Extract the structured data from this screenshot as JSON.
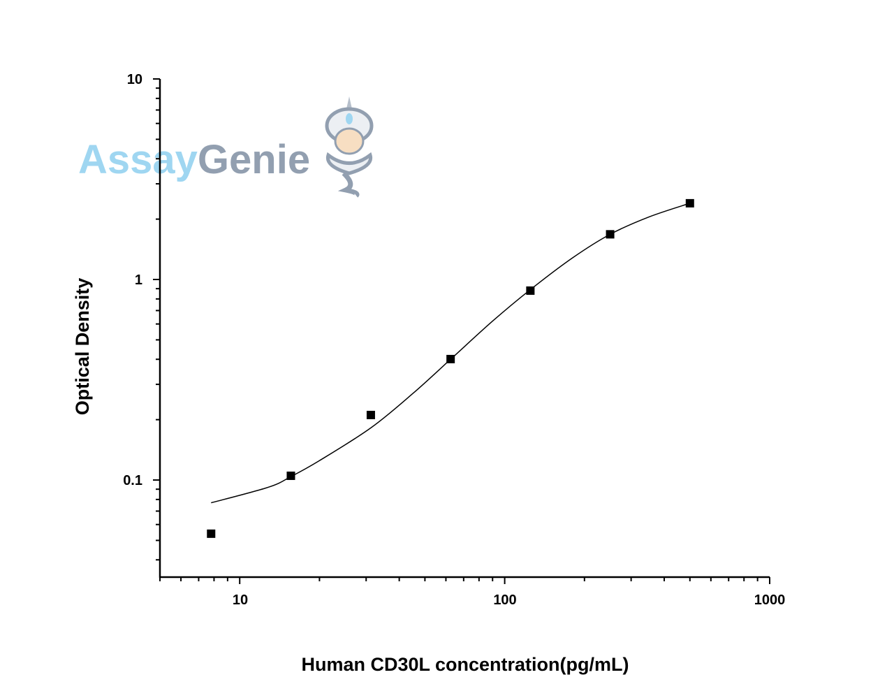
{
  "chart_data": {
    "type": "scatter",
    "title": "",
    "xlabel": "Human CD30L concentration(pg/mL)",
    "ylabel": "Optical Density",
    "xscale": "log",
    "yscale": "log",
    "xlim": [
      5,
      1000
    ],
    "ylim": [
      0.0328,
      10
    ],
    "x_ticks": [
      {
        "value": 10,
        "label": "10"
      },
      {
        "value": 100,
        "label": "100"
      },
      {
        "value": 1000,
        "label": "1000"
      }
    ],
    "y_ticks": [
      {
        "value": 0.1,
        "label": "0.1"
      },
      {
        "value": 1,
        "label": "1"
      },
      {
        "value": 10,
        "label": "10"
      }
    ],
    "grid": false,
    "legend": "none",
    "series": [
      {
        "type": "scatter",
        "marker": "square",
        "color": "#000000",
        "x": [
          7.8,
          15.6,
          31.25,
          62.5,
          125,
          250,
          500
        ],
        "y": [
          0.054,
          0.105,
          0.211,
          0.401,
          0.88,
          1.68,
          2.4
        ]
      },
      {
        "type": "line",
        "fit": "curve",
        "color": "#000000",
        "x": [
          7.8,
          12.8,
          15.6,
          20,
          31.25,
          45,
          62.5,
          90,
          125,
          180,
          250,
          350,
          500
        ],
        "y": [
          0.077,
          0.092,
          0.104,
          0.125,
          0.182,
          0.27,
          0.4,
          0.62,
          0.89,
          1.28,
          1.68,
          2.05,
          2.4
        ]
      }
    ]
  },
  "watermark": {
    "text_part1": "Assay",
    "text_part2": "Genie",
    "color1": "#8fd0ef",
    "color2": "#7f8fa3"
  }
}
